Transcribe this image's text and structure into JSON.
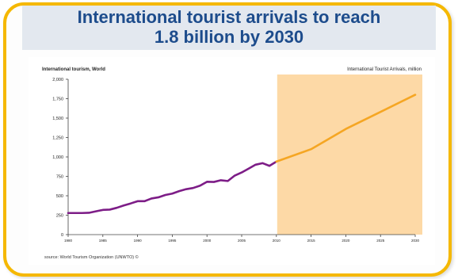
{
  "slide": {
    "title_line1": "International tourist arrivals to reach",
    "title_line2": "1.8 billion by 2030",
    "accent_color": "#f5b800",
    "title_color": "#1d4c8c"
  },
  "chart_data": {
    "type": "line",
    "subtitle_left": "International tourism, World",
    "subtitle_right": "International Tourist Arrivals, million",
    "source": "source: World Tourism Organization (UNWTO) ©",
    "ylim": [
      0,
      2000
    ],
    "y_ticks": [
      0,
      250,
      500,
      750,
      1000,
      1250,
      1500,
      1750,
      2000
    ],
    "y_tick_labels": [
      "0",
      "250",
      "500",
      "750",
      "1,000",
      "1,250",
      "1,500",
      "1,750",
      "2,000"
    ],
    "xlim": [
      1980,
      2030
    ],
    "x_ticks": [
      1980,
      1985,
      1990,
      1995,
      2000,
      2005,
      2010,
      2015,
      2020,
      2025,
      2030
    ],
    "x_tick_labels": [
      "1980",
      "1985",
      "1990",
      "1995",
      "2000",
      "2005",
      "2010",
      "2015",
      "2020",
      "2025",
      "2030"
    ],
    "forecast_region": {
      "from": 2010,
      "to": 2030,
      "color": "#fdd9a6"
    },
    "grid": false,
    "series": [
      {
        "color": "#7d1d87",
        "x": [
          1980,
          1981,
          1982,
          1983,
          1984,
          1985,
          1986,
          1987,
          1988,
          1989,
          1990,
          1991,
          1992,
          1993,
          1994,
          1995,
          1996,
          1997,
          1998,
          1999,
          2000,
          2001,
          2002,
          2003,
          2004,
          2005,
          2006,
          2007,
          2008,
          2009,
          2010
        ],
        "values": [
          278,
          278,
          278,
          281,
          300,
          318,
          322,
          345,
          375,
          401,
          430,
          430,
          465,
          480,
          510,
          528,
          560,
          585,
          600,
          630,
          680,
          678,
          700,
          690,
          760,
          800,
          850,
          900,
          920,
          885,
          940
        ]
      },
      {
        "color": "#f5a623",
        "x": [
          2010,
          2015,
          2020,
          2025,
          2030
        ],
        "values": [
          940,
          1100,
          1360,
          1580,
          1800
        ]
      }
    ]
  }
}
